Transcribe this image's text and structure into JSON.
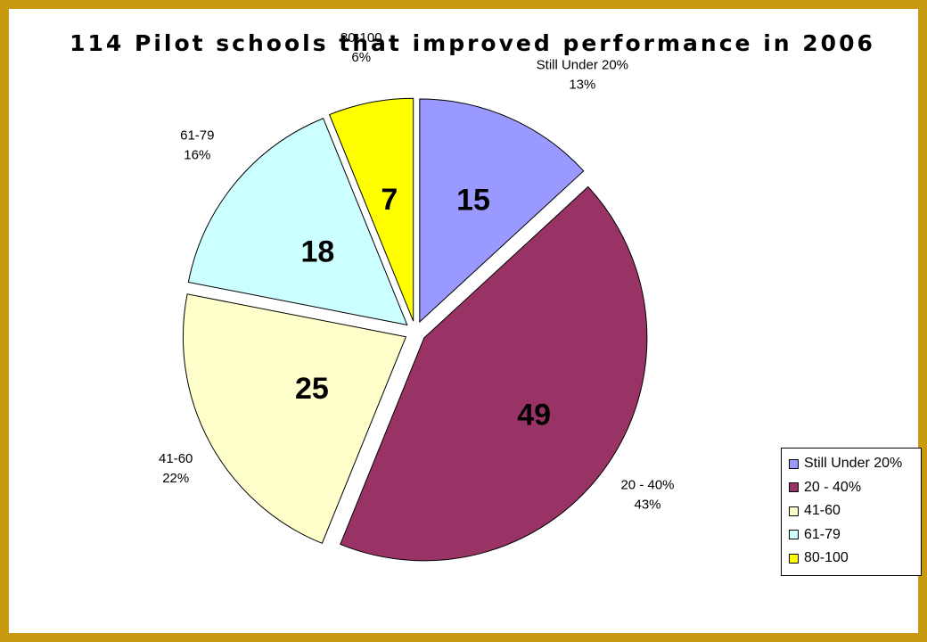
{
  "chart_data": {
    "type": "pie",
    "title": "114 Pilot schools that improved performance in 2006",
    "slices": [
      {
        "category": "Still Under 20%",
        "value": 15,
        "percent": "13%",
        "color": "#9999ff"
      },
      {
        "category": "20 - 40%",
        "value": 49,
        "percent": "43%",
        "color": "#993366"
      },
      {
        "category": "41-60",
        "value": 25,
        "percent": "22%",
        "color": "#ffffcc"
      },
      {
        "category": "61-79",
        "value": 18,
        "percent": "16%",
        "color": "#ccffff"
      },
      {
        "category": "80-100",
        "value": 7,
        "percent": "6%",
        "color": "#ffff00"
      }
    ],
    "legend": {
      "placement": "bottom-right",
      "items": [
        "Still Under 20%",
        "20 - 40%",
        "41-60",
        "61-79",
        "80-100"
      ]
    },
    "exploded": true
  }
}
